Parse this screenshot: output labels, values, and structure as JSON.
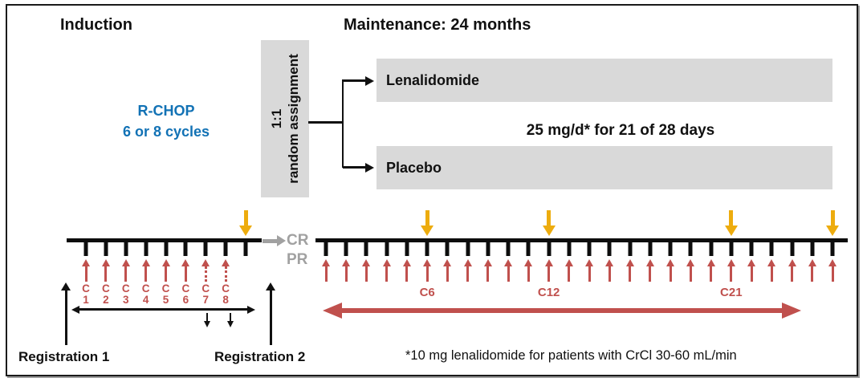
{
  "colors": {
    "arrow_red": "#C0504D",
    "arrow_gold": "#EDAC0E",
    "box_gray": "#D9D9D9",
    "response_gray": "#A1A1A1",
    "regimen_blue": "#1272B5"
  },
  "induction": {
    "title": "Induction",
    "regimen": {
      "line1": "R-CHOP",
      "line2": "6 or 8 cycles"
    },
    "registration1_label": "Registration 1",
    "registration2_label": "Registration 2",
    "timeline": {
      "cycles": [
        {
          "letter": "C",
          "number": "1",
          "dotted": false
        },
        {
          "letter": "C",
          "number": "2",
          "dotted": false
        },
        {
          "letter": "C",
          "number": "3",
          "dotted": false
        },
        {
          "letter": "C",
          "number": "4",
          "dotted": false
        },
        {
          "letter": "C",
          "number": "5",
          "dotted": false
        },
        {
          "letter": "C",
          "number": "6",
          "dotted": false
        },
        {
          "letter": "C",
          "number": "7",
          "dotted": true
        },
        {
          "letter": "C",
          "number": "8",
          "dotted": true
        }
      ],
      "has_end_evaluation_tick": true
    }
  },
  "randomization": {
    "ratio": "1:1",
    "label": "random assignment"
  },
  "maintenance": {
    "title": "Maintenance: 24 months",
    "arms": [
      {
        "label": "Lenalidomide"
      },
      {
        "label": "Placebo"
      }
    ],
    "dose_text": "25 mg/d* for 21 of 28 days",
    "timeline": {
      "tick_count": 26,
      "cycle_labels": [
        {
          "text": "C6",
          "tick_index": 5
        },
        {
          "text": "C12",
          "tick_index": 11
        },
        {
          "text": "C21",
          "tick_index": 20
        }
      ],
      "gold_arrow_tick_indices": [
        5,
        11,
        20,
        25
      ]
    }
  },
  "response_labels": {
    "cr": "CR",
    "pr": "PR"
  },
  "footnote": "*10 mg lenalidomide for patients with CrCl 30-60 mL/min"
}
